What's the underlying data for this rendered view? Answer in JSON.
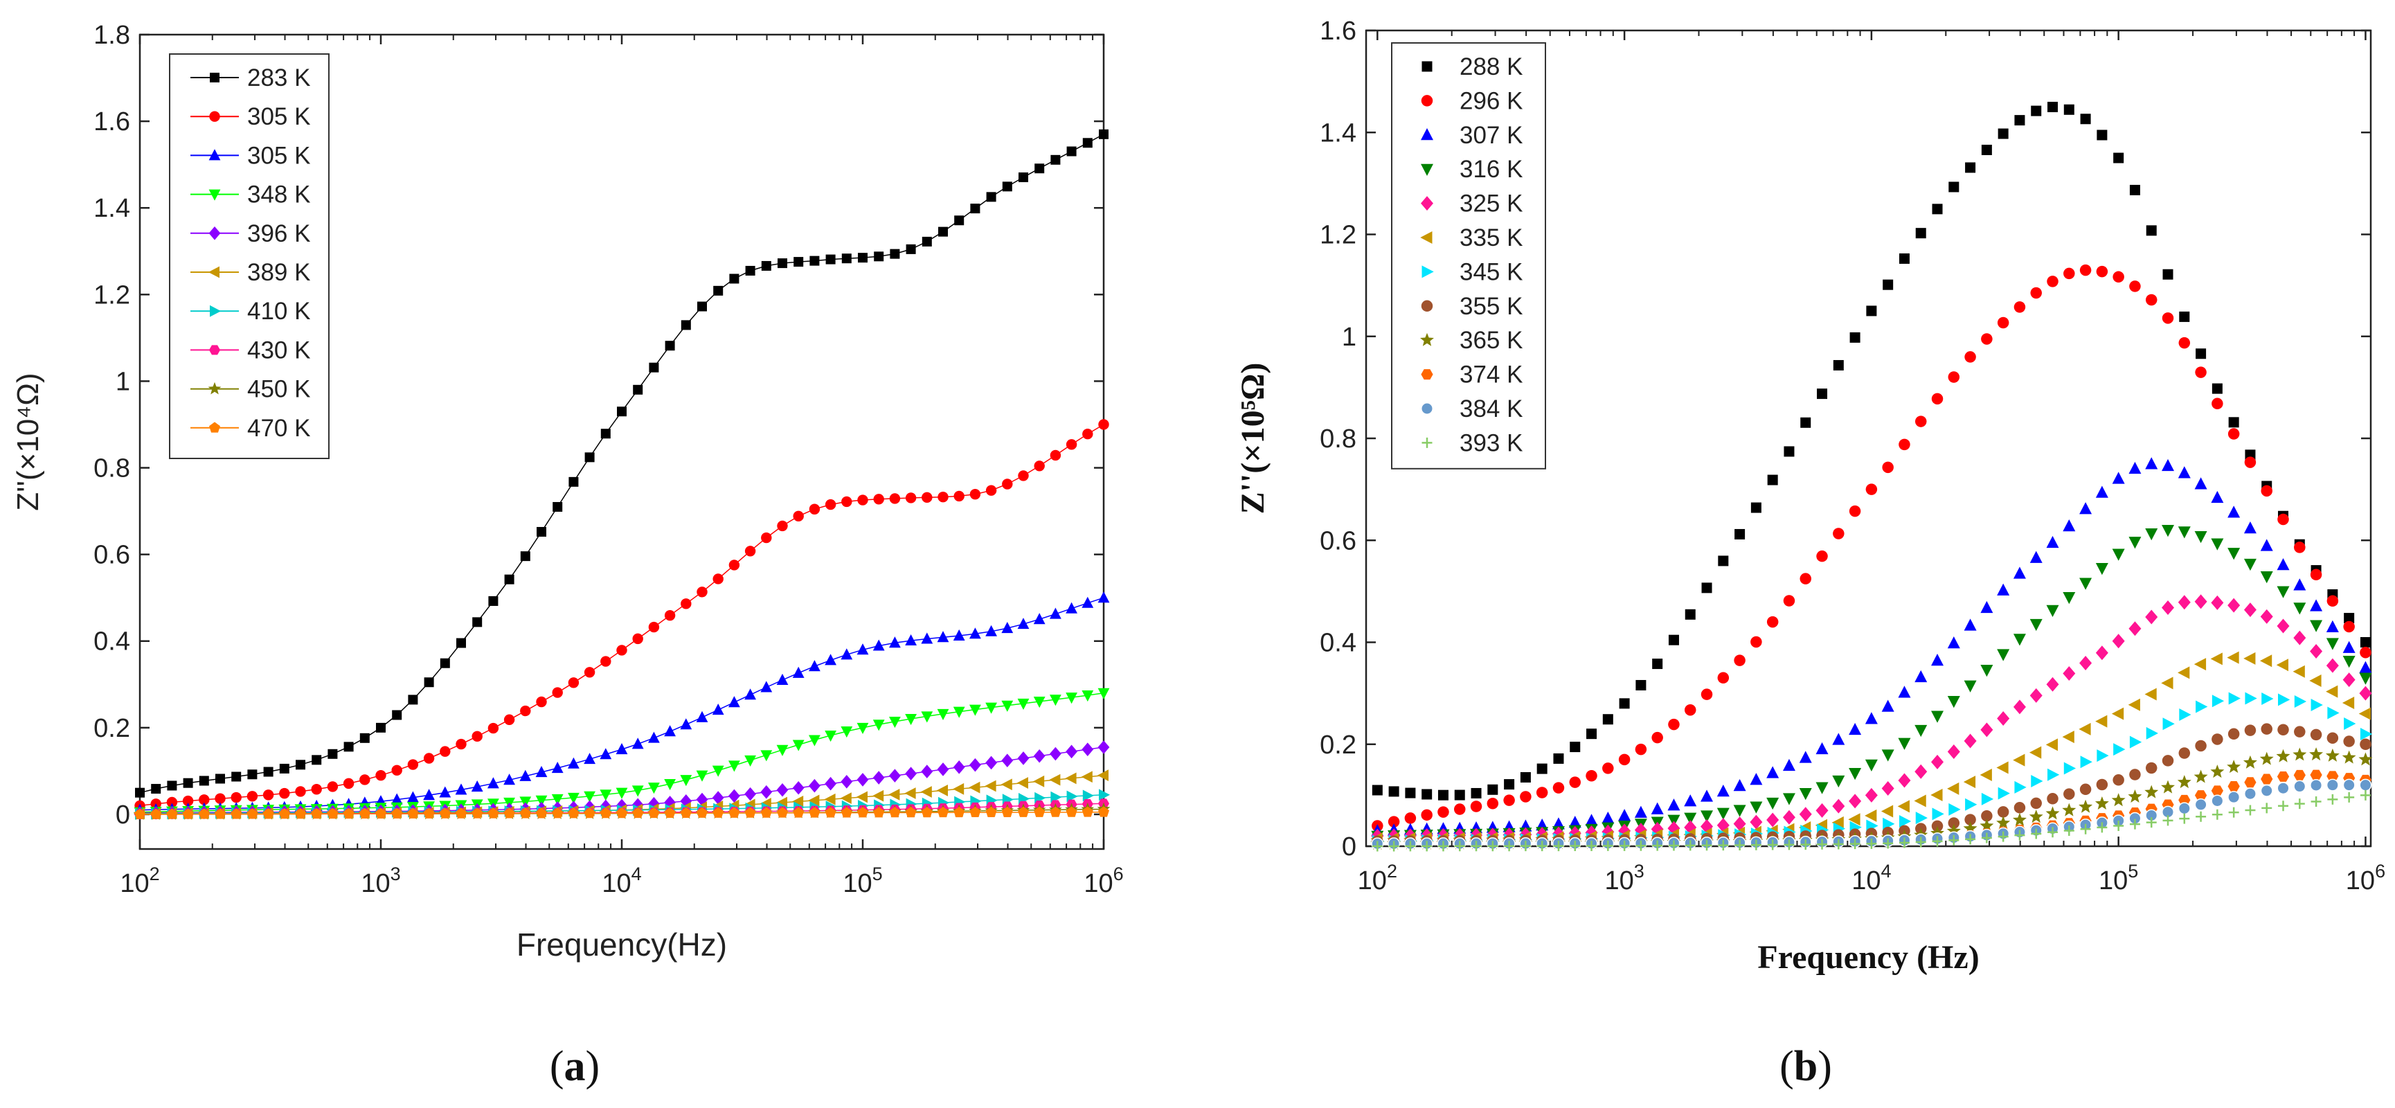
{
  "chart_data": [
    {
      "type": "line",
      "panel_label": "(a)",
      "panel_letter": "a",
      "xlabel": "Frequency(Hz)",
      "ylabel": "Z''(×10⁴Ω)",
      "x_scale": "log",
      "xlim": [
        100,
        1000000
      ],
      "ylim": [
        -0.08,
        1.8
      ],
      "x_ticks": [
        {
          "base": "10",
          "exp": "2"
        },
        {
          "base": "10",
          "exp": "3"
        },
        {
          "base": "10",
          "exp": "4"
        },
        {
          "base": "10",
          "exp": "5"
        },
        {
          "base": "10",
          "exp": "6"
        }
      ],
      "y_ticks": [
        "0",
        "0.2",
        "0.4",
        "0.6",
        "0.8",
        "1",
        "1.2",
        "1.4",
        "1.6",
        "1.8"
      ],
      "legend_position": "top-left",
      "series": [
        {
          "name": "283 K",
          "color": "#000000",
          "marker": "square",
          "points": [
            [
              100,
              0.05
            ],
            [
              1000,
              0.2
            ],
            [
              3000,
              0.5
            ],
            [
              10000,
              0.93
            ],
            [
              30000,
              1.24
            ],
            [
              70000,
              1.28
            ],
            [
              150000,
              1.3
            ],
            [
              400000,
              1.45
            ],
            [
              1000000,
              1.57
            ]
          ]
        },
        {
          "name": "305 K",
          "color": "#ff0000",
          "marker": "circle",
          "points": [
            [
              100,
              0.02
            ],
            [
              1000,
              0.09
            ],
            [
              5000,
              0.27
            ],
            [
              20000,
              0.5
            ],
            [
              60000,
              0.7
            ],
            [
              150000,
              0.73
            ],
            [
              300000,
              0.74
            ],
            [
              1000000,
              0.9
            ]
          ]
        },
        {
          "name": "305 K",
          "color": "#0000ff",
          "marker": "triangle-up",
          "points": [
            [
              100,
              0.01
            ],
            [
              1000,
              0.03
            ],
            [
              10000,
              0.15
            ],
            [
              100000,
              0.38
            ],
            [
              400000,
              0.43
            ],
            [
              1000000,
              0.5
            ]
          ]
        },
        {
          "name": "348 K",
          "color": "#00ff00",
          "marker": "triangle-down",
          "points": [
            [
              100,
              0.005
            ],
            [
              10000,
              0.05
            ],
            [
              100000,
              0.2
            ],
            [
              1000000,
              0.28
            ]
          ]
        },
        {
          "name": "396 K",
          "color": "#8b00ff",
          "marker": "diamond",
          "points": [
            [
              100,
              0.003
            ],
            [
              10000,
              0.02
            ],
            [
              100000,
              0.08
            ],
            [
              1000000,
              0.155
            ]
          ]
        },
        {
          "name": "389 K",
          "color": "#c89600",
          "marker": "triangle-left",
          "points": [
            [
              100,
              0.002
            ],
            [
              10000,
              0.01
            ],
            [
              100000,
              0.04
            ],
            [
              1000000,
              0.09
            ]
          ]
        },
        {
          "name": "410 K",
          "color": "#00cccc",
          "marker": "triangle-right",
          "points": [
            [
              100,
              0.001
            ],
            [
              100000,
              0.02
            ],
            [
              1000000,
              0.045
            ]
          ]
        },
        {
          "name": "430 K",
          "color": "#ff1493",
          "marker": "hexagon",
          "points": [
            [
              100,
              0.0
            ],
            [
              100000,
              0.01
            ],
            [
              1000000,
              0.025
            ]
          ]
        },
        {
          "name": "450 K",
          "color": "#808000",
          "marker": "star",
          "points": [
            [
              100,
              0.0
            ],
            [
              100000,
              0.005
            ],
            [
              1000000,
              0.012
            ]
          ]
        },
        {
          "name": "470 K",
          "color": "#ff8000",
          "marker": "pentagon",
          "points": [
            [
              100,
              0.0
            ],
            [
              1000000,
              0.005
            ]
          ]
        }
      ]
    },
    {
      "type": "scatter",
      "panel_label": "(b)",
      "panel_letter": "b",
      "xlabel": "Frequency (Hz)",
      "ylabel": "Z''(×10⁵Ω)",
      "x_scale": "log",
      "xlim": [
        90,
        1050000
      ],
      "ylim": [
        0,
        1.6
      ],
      "x_ticks": [
        {
          "base": "10",
          "exp": "2"
        },
        {
          "base": "10",
          "exp": "3"
        },
        {
          "base": "10",
          "exp": "4"
        },
        {
          "base": "10",
          "exp": "5"
        },
        {
          "base": "10",
          "exp": "6"
        }
      ],
      "y_ticks": [
        "0",
        "0.2",
        "0.4",
        "0.6",
        "0.8",
        "1",
        "1.2",
        "1.4",
        "1.6"
      ],
      "legend_position": "top-left",
      "series": [
        {
          "name": "288 K",
          "color": "#000000",
          "marker": "square",
          "points": [
            [
              100,
              0.11
            ],
            [
              200,
              0.1
            ],
            [
              1000,
              0.28
            ],
            [
              3000,
              0.62
            ],
            [
              10000,
              1.05
            ],
            [
              25000,
              1.33
            ],
            [
              55000,
              1.45
            ],
            [
              100000,
              1.35
            ],
            [
              200000,
              1.0
            ],
            [
              500000,
              0.62
            ],
            [
              1000000,
              0.4
            ]
          ]
        },
        {
          "name": "296 K",
          "color": "#ff0000",
          "marker": "circle",
          "points": [
            [
              100,
              0.04
            ],
            [
              1000,
              0.17
            ],
            [
              3000,
              0.37
            ],
            [
              10000,
              0.7
            ],
            [
              30000,
              1.0
            ],
            [
              75000,
              1.13
            ],
            [
              150000,
              1.05
            ],
            [
              300000,
              0.8
            ],
            [
              600000,
              0.55
            ],
            [
              1000000,
              0.38
            ]
          ]
        },
        {
          "name": "307 K",
          "color": "#0000ff",
          "marker": "triangle-up",
          "points": [
            [
              100,
              0.03
            ],
            [
              1000,
              0.06
            ],
            [
              10000,
              0.25
            ],
            [
              50000,
              0.58
            ],
            [
              140000,
              0.75
            ],
            [
              300000,
              0.65
            ],
            [
              1000000,
              0.35
            ]
          ]
        },
        {
          "name": "316 K",
          "color": "#008000",
          "marker": "triangle-down",
          "points": [
            [
              100,
              0.02
            ],
            [
              1000,
              0.04
            ],
            [
              10000,
              0.16
            ],
            [
              60000,
              0.48
            ],
            [
              160000,
              0.62
            ],
            [
              350000,
              0.55
            ],
            [
              1000000,
              0.33
            ]
          ]
        },
        {
          "name": "325 K",
          "color": "#ff1493",
          "marker": "diamond",
          "points": [
            [
              100,
              0.02
            ],
            [
              1000,
              0.03
            ],
            [
              10000,
              0.1
            ],
            [
              80000,
              0.37
            ],
            [
              200000,
              0.48
            ],
            [
              400000,
              0.45
            ],
            [
              1000000,
              0.3
            ]
          ]
        },
        {
          "name": "335 K",
          "color": "#c89600",
          "marker": "triangle-left",
          "points": [
            [
              100,
              0.015
            ],
            [
              1000,
              0.02
            ],
            [
              10000,
              0.06
            ],
            [
              100000,
              0.26
            ],
            [
              280000,
              0.37
            ],
            [
              500000,
              0.35
            ],
            [
              1000000,
              0.26
            ]
          ]
        },
        {
          "name": "345 K",
          "color": "#00e5ff",
          "marker": "triangle-right",
          "points": [
            [
              100,
              0.01
            ],
            [
              10000,
              0.04
            ],
            [
              100000,
              0.19
            ],
            [
              300000,
              0.29
            ],
            [
              600000,
              0.28
            ],
            [
              1000000,
              0.22
            ]
          ]
        },
        {
          "name": "355 K",
          "color": "#a0522d",
          "marker": "circle",
          "points": [
            [
              100,
              0.01
            ],
            [
              10000,
              0.025
            ],
            [
              100000,
              0.13
            ],
            [
              400000,
              0.23
            ],
            [
              1000000,
              0.2
            ]
          ]
        },
        {
          "name": "365 K",
          "color": "#808000",
          "marker": "star",
          "points": [
            [
              100,
              0.005
            ],
            [
              10000,
              0.015
            ],
            [
              100000,
              0.09
            ],
            [
              600000,
              0.18
            ],
            [
              1000000,
              0.17
            ]
          ]
        },
        {
          "name": "374 K",
          "color": "#ff6600",
          "marker": "hexagon",
          "points": [
            [
              100,
              0.005
            ],
            [
              10000,
              0.01
            ],
            [
              100000,
              0.06
            ],
            [
              600000,
              0.14
            ],
            [
              1000000,
              0.13
            ]
          ]
        },
        {
          "name": "384 K",
          "color": "#6699cc",
          "marker": "sphere",
          "points": [
            [
              100,
              0.005
            ],
            [
              10000,
              0.01
            ],
            [
              100000,
              0.05
            ],
            [
              700000,
              0.12
            ],
            [
              1000000,
              0.12
            ]
          ]
        },
        {
          "name": "393 K",
          "color": "#88cc66",
          "marker": "plus",
          "points": [
            [
              100,
              0.0
            ],
            [
              10000,
              0.005
            ],
            [
              100000,
              0.04
            ],
            [
              1000000,
              0.1
            ]
          ]
        }
      ]
    }
  ]
}
